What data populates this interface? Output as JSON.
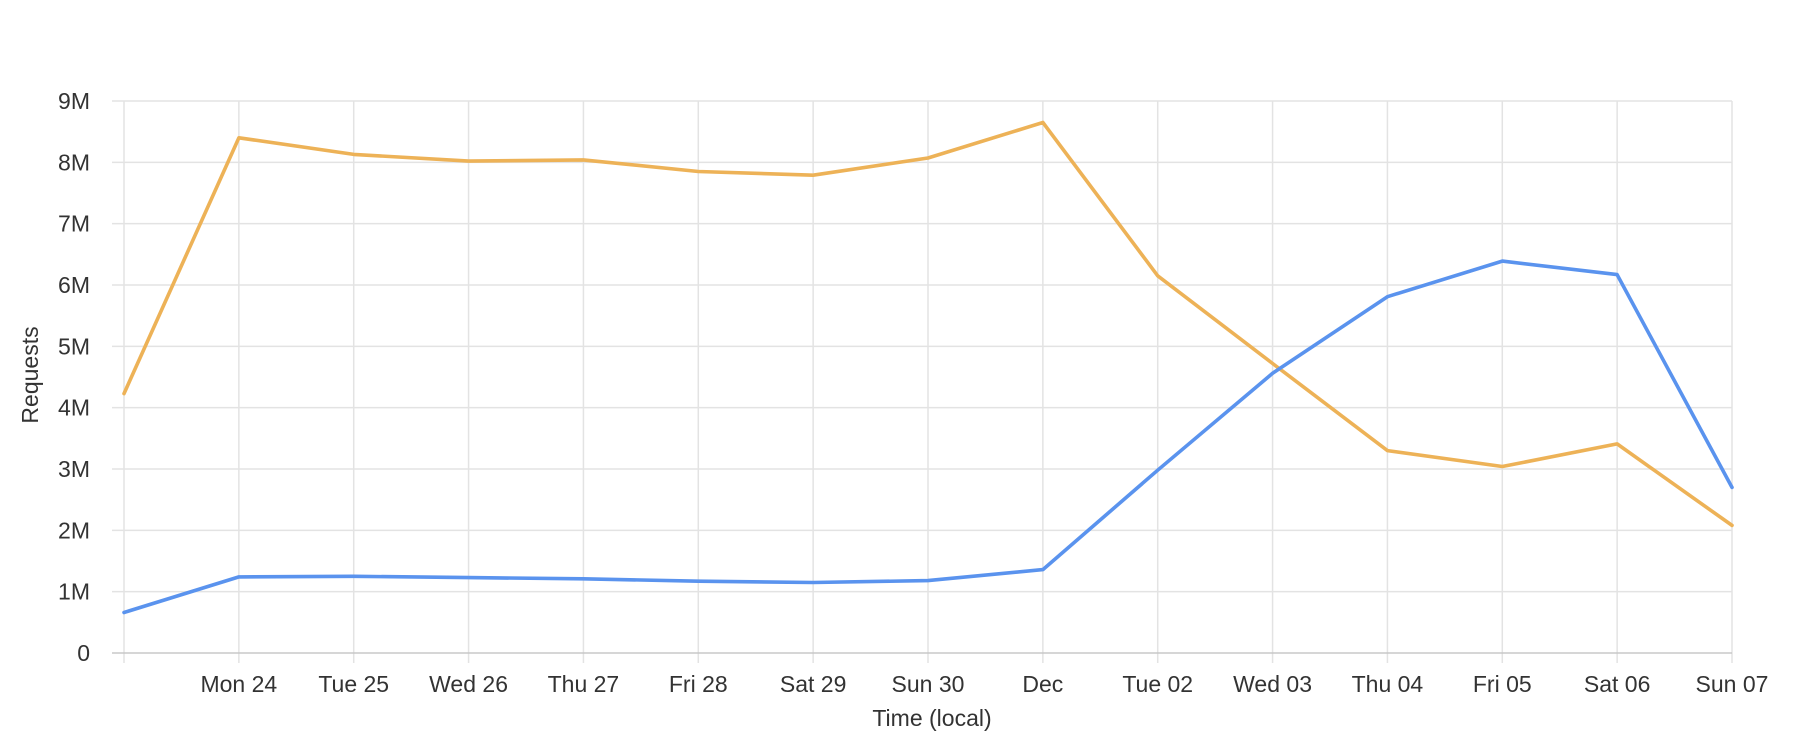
{
  "chart_data": {
    "type": "line",
    "title": "",
    "xlabel": "Time (local)",
    "ylabel": "Requests",
    "ylim": [
      0,
      9000000
    ],
    "yticks": [
      0,
      1000000,
      2000000,
      3000000,
      4000000,
      5000000,
      6000000,
      7000000,
      8000000,
      9000000
    ],
    "ytick_labels": [
      "0",
      "1M",
      "2M",
      "3M",
      "4M",
      "5M",
      "6M",
      "7M",
      "8M",
      "9M"
    ],
    "x_ticks": [
      {
        "label": "Mon 24",
        "x": 1
      },
      {
        "label": "Tue 25",
        "x": 2
      },
      {
        "label": "Wed 26",
        "x": 3
      },
      {
        "label": "Thu 27",
        "x": 4
      },
      {
        "label": "Fri 28",
        "x": 5
      },
      {
        "label": "Sat 29",
        "x": 6
      },
      {
        "label": "Sun 30",
        "x": 7
      },
      {
        "label": "Dec",
        "x": 8
      },
      {
        "label": "Tue 02",
        "x": 9
      },
      {
        "label": "Wed 03",
        "x": 10
      },
      {
        "label": "Thu 04",
        "x": 11
      },
      {
        "label": "Fri 05",
        "x": 12
      },
      {
        "label": "Sat 06",
        "x": 13
      },
      {
        "label": "Sun 07",
        "x": 14
      }
    ],
    "xlim": [
      0,
      14
    ],
    "grid": true,
    "legend": "none",
    "series": [
      {
        "color": "#edb257",
        "x": [
          0,
          1,
          2,
          3,
          4,
          5,
          6,
          7,
          8,
          9,
          10,
          11,
          12,
          13,
          14
        ],
        "values": [
          4230000,
          8400000,
          8130000,
          8020000,
          8040000,
          7850000,
          7790000,
          8070000,
          8650000,
          6150000,
          4720000,
          3300000,
          3040000,
          3410000,
          2080000
        ]
      },
      {
        "color": "#5a93ee",
        "x": [
          0,
          1,
          2,
          3,
          4,
          5,
          6,
          7,
          8,
          9,
          10,
          11,
          12,
          13,
          14
        ],
        "values": [
          660000,
          1240000,
          1250000,
          1230000,
          1210000,
          1170000,
          1150000,
          1180000,
          1360000,
          2980000,
          4560000,
          5810000,
          6390000,
          6170000,
          2700000
        ]
      }
    ]
  }
}
